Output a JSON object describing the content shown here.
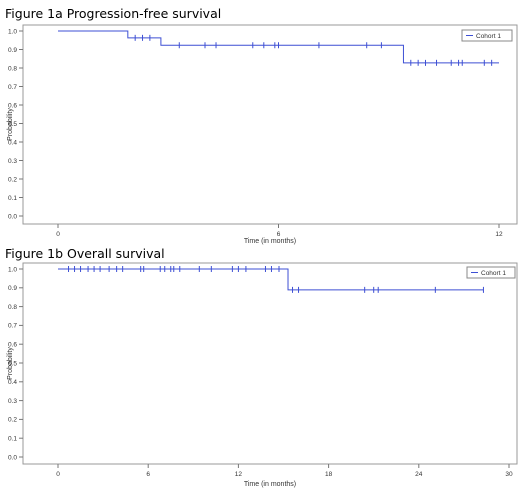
{
  "figure_titles": [
    "Figure 1a Progression-free survival",
    "Figure 1b Overall survival"
  ],
  "chart_data": [
    {
      "type": "line",
      "subtype": "kaplan-meier step curve with censor ticks",
      "title": "Figure 1a Progression-free survival",
      "xlabel": "Time (in months)",
      "ylabel": "Probability",
      "xlim": [
        0,
        12
      ],
      "ylim": [
        0,
        1.0
      ],
      "xticks": [
        0,
        6,
        12
      ],
      "yticks": [
        0.0,
        0.1,
        0.2,
        0.3,
        0.4,
        0.5,
        0.6,
        0.7,
        0.8,
        0.9,
        1.0
      ],
      "grid": false,
      "legend_position": "top-right",
      "series_color": "#3d4fd4",
      "series": [
        {
          "name": "Cohort 1",
          "steps": [
            [
              0,
              1.0
            ],
            [
              1.9,
              0.963
            ],
            [
              2.8,
              0.923
            ],
            [
              9.4,
              0.828
            ],
            [
              12,
              0.828
            ]
          ],
          "censored": [
            [
              2.1,
              0.963
            ],
            [
              2.3,
              0.963
            ],
            [
              2.5,
              0.963
            ],
            [
              3.3,
              0.923
            ],
            [
              4.0,
              0.923
            ],
            [
              4.3,
              0.923
            ],
            [
              5.3,
              0.923
            ],
            [
              5.6,
              0.923
            ],
            [
              5.9,
              0.923
            ],
            [
              6.0,
              0.923
            ],
            [
              7.1,
              0.923
            ],
            [
              8.4,
              0.923
            ],
            [
              8.8,
              0.923
            ],
            [
              9.6,
              0.828
            ],
            [
              9.8,
              0.828
            ],
            [
              10.0,
              0.828
            ],
            [
              10.3,
              0.828
            ],
            [
              10.7,
              0.828
            ],
            [
              10.9,
              0.828
            ],
            [
              11.0,
              0.828
            ],
            [
              11.6,
              0.828
            ],
            [
              11.8,
              0.828
            ]
          ]
        }
      ]
    },
    {
      "type": "line",
      "subtype": "kaplan-meier step curve with censor ticks",
      "title": "Figure 1b Overall survival",
      "xlabel": "Time (in months)",
      "ylabel": "Probability",
      "xlim": [
        0,
        30
      ],
      "ylim": [
        0,
        1.0
      ],
      "xticks": [
        0,
        6,
        12,
        18,
        24,
        30
      ],
      "yticks": [
        0.0,
        0.1,
        0.2,
        0.3,
        0.4,
        0.5,
        0.6,
        0.7,
        0.8,
        0.9,
        1.0
      ],
      "grid": false,
      "legend_position": "top-right",
      "series_color": "#3d4fd4",
      "series": [
        {
          "name": "Cohort 1",
          "steps": [
            [
              0,
              1.0
            ],
            [
              15.3,
              0.889
            ],
            [
              28.3,
              0.889
            ]
          ],
          "censored": [
            [
              0.7,
              1.0
            ],
            [
              1.1,
              1.0
            ],
            [
              1.5,
              1.0
            ],
            [
              2.0,
              1.0
            ],
            [
              2.4,
              1.0
            ],
            [
              2.8,
              1.0
            ],
            [
              3.4,
              1.0
            ],
            [
              3.9,
              1.0
            ],
            [
              4.3,
              1.0
            ],
            [
              5.5,
              1.0
            ],
            [
              5.7,
              1.0
            ],
            [
              6.8,
              1.0
            ],
            [
              7.1,
              1.0
            ],
            [
              7.5,
              1.0
            ],
            [
              7.7,
              1.0
            ],
            [
              8.1,
              1.0
            ],
            [
              9.4,
              1.0
            ],
            [
              10.2,
              1.0
            ],
            [
              11.6,
              1.0
            ],
            [
              12.0,
              1.0
            ],
            [
              12.5,
              1.0
            ],
            [
              13.8,
              1.0
            ],
            [
              14.2,
              1.0
            ],
            [
              14.7,
              1.0
            ],
            [
              15.6,
              0.889
            ],
            [
              16.0,
              0.889
            ],
            [
              20.4,
              0.889
            ],
            [
              21.0,
              0.889
            ],
            [
              21.3,
              0.889
            ],
            [
              25.1,
              0.889
            ],
            [
              28.3,
              0.889
            ]
          ]
        }
      ]
    }
  ]
}
